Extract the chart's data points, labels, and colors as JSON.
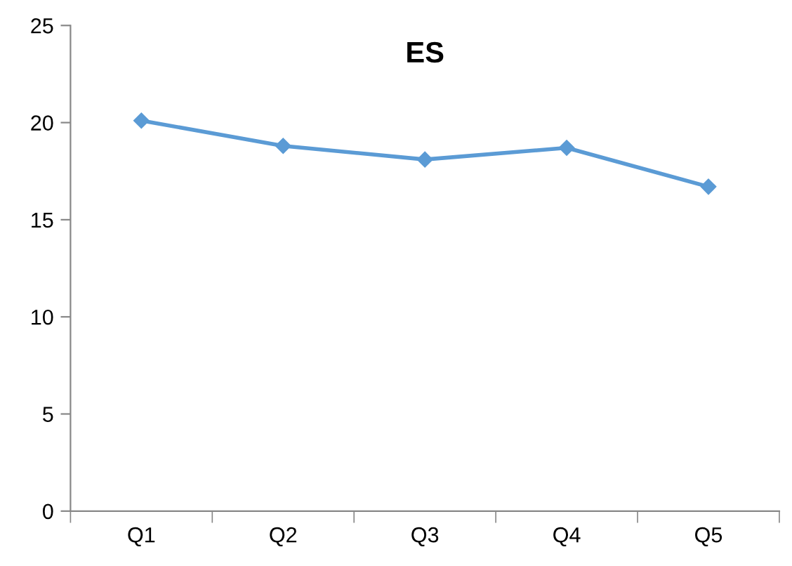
{
  "chart_data": {
    "type": "line",
    "title": "ES",
    "categories": [
      "Q1",
      "Q2",
      "Q3",
      "Q4",
      "Q5"
    ],
    "series": [
      {
        "color": "#5b9bd5",
        "values": [
          20.1,
          18.8,
          18.1,
          18.7,
          16.7
        ]
      }
    ],
    "ylim": [
      0,
      25
    ],
    "yticks": [
      0,
      5,
      10,
      15,
      20,
      25
    ],
    "grid": false,
    "legend": false,
    "marker": "diamond",
    "line_style": "solid"
  }
}
